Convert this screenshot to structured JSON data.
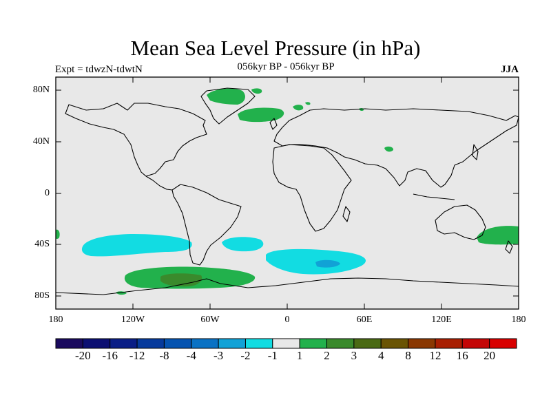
{
  "title": "Mean Sea Level Pressure (in hPa)",
  "subtitle_left": "Expt = tdwzN-tdwtN",
  "subtitle_center": "056kyr BP - 056kyr BP",
  "subtitle_right": "JJA",
  "y_ticks": [
    "80N",
    "40N",
    "0",
    "40S",
    "80S"
  ],
  "x_ticks": [
    "180",
    "120W",
    "60W",
    "0",
    "60E",
    "120E",
    "180"
  ],
  "colorbar": {
    "labels": [
      "-20",
      "-16",
      "-12",
      "-8",
      "-4",
      "-3",
      "-2",
      "-1",
      "1",
      "2",
      "3",
      "4",
      "8",
      "12",
      "16",
      "20"
    ],
    "colors": [
      "#1a0a5e",
      "#0c0f72",
      "#0a1e86",
      "#063a9c",
      "#0553b0",
      "#0a72c4",
      "#11a2d6",
      "#12dce2",
      "#e8e8e8",
      "#22b14c",
      "#3a8a2c",
      "#4a6a14",
      "#6a5404",
      "#8a3802",
      "#a81f02",
      "#c40606",
      "#d80000"
    ]
  },
  "colors": {
    "ocean_land_fill": "#e8e8e8",
    "positive_1_2": "#22b14c",
    "positive_2_3": "#3a8a2c",
    "negative_1_2": "#12dce2",
    "coastline": "#000000"
  }
}
